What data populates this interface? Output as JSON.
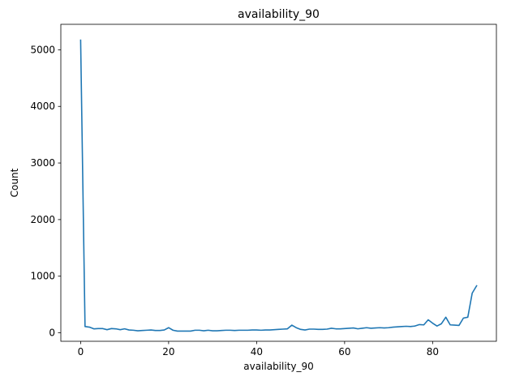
{
  "chart_data": {
    "type": "line",
    "title": "availability_90",
    "xlabel": "availability_90",
    "ylabel": "Count",
    "xlim": [
      -4.5,
      94.5
    ],
    "ylim": [
      -150,
      5450
    ],
    "xticks": [
      0,
      20,
      40,
      60,
      80
    ],
    "yticks": [
      0,
      1000,
      2000,
      3000,
      4000,
      5000
    ],
    "grid": false,
    "legend": "none",
    "series": [
      {
        "color": "#1f77b4",
        "x": [
          0,
          1,
          2,
          3,
          4,
          5,
          6,
          7,
          8,
          9,
          10,
          11,
          12,
          13,
          14,
          15,
          16,
          17,
          18,
          19,
          20,
          21,
          22,
          23,
          24,
          25,
          26,
          27,
          28,
          29,
          30,
          31,
          32,
          33,
          34,
          35,
          36,
          37,
          38,
          39,
          40,
          41,
          42,
          43,
          44,
          45,
          46,
          47,
          48,
          49,
          50,
          51,
          52,
          53,
          54,
          55,
          56,
          57,
          58,
          59,
          60,
          61,
          62,
          63,
          64,
          65,
          66,
          67,
          68,
          69,
          70,
          71,
          72,
          73,
          74,
          75,
          76,
          77,
          78,
          79,
          80,
          81,
          82,
          83,
          84,
          85,
          86,
          87,
          88,
          89,
          90
        ],
        "y": [
          5170,
          110,
          100,
          70,
          75,
          75,
          55,
          75,
          70,
          55,
          70,
          50,
          45,
          35,
          40,
          45,
          50,
          40,
          40,
          50,
          90,
          45,
          30,
          30,
          30,
          30,
          45,
          45,
          35,
          45,
          35,
          35,
          40,
          45,
          45,
          40,
          45,
          45,
          45,
          50,
          50,
          45,
          50,
          50,
          55,
          60,
          65,
          70,
          135,
          90,
          60,
          50,
          65,
          65,
          60,
          60,
          65,
          80,
          70,
          70,
          75,
          80,
          85,
          70,
          80,
          90,
          80,
          85,
          90,
          85,
          90,
          100,
          105,
          110,
          115,
          110,
          120,
          145,
          140,
          230,
          170,
          120,
          160,
          275,
          140,
          135,
          130,
          260,
          275,
          700,
          830
        ]
      }
    ]
  }
}
